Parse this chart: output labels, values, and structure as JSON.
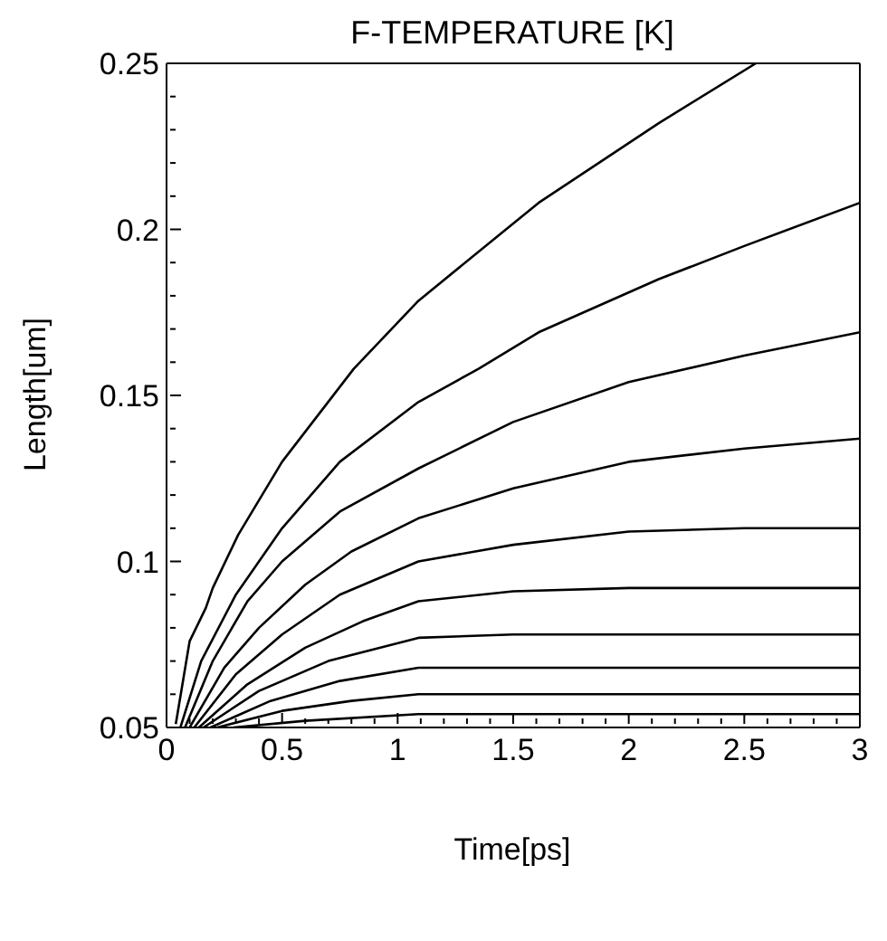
{
  "chart_data": {
    "type": "line",
    "title": "F-TEMPERATURE [K]",
    "xlabel": "Time[ps]",
    "ylabel": "Length[um]",
    "xlim": [
      0,
      3
    ],
    "ylim": [
      0.05,
      0.25
    ],
    "xticks": [
      0,
      {
        "value": 0.1,
        "label": null
      },
      {
        "value": 0.2,
        "label": null
      },
      {
        "value": 0.3,
        "label": null
      },
      {
        "value": 0.4,
        "label": null
      },
      0.5,
      {
        "value": 0.6,
        "label": null
      },
      {
        "value": 0.7,
        "label": null
      },
      {
        "value": 0.8,
        "label": null
      },
      {
        "value": 0.9,
        "label": null
      },
      1,
      {
        "value": 1.1,
        "label": null
      },
      {
        "value": 1.2,
        "label": null
      },
      {
        "value": 1.3,
        "label": null
      },
      {
        "value": 1.4,
        "label": null
      },
      1.5,
      {
        "value": 1.6,
        "label": null
      },
      {
        "value": 1.7,
        "label": null
      },
      {
        "value": 1.8,
        "label": null
      },
      {
        "value": 1.9,
        "label": null
      },
      2,
      {
        "value": 2.1,
        "label": null
      },
      {
        "value": 2.2,
        "label": null
      },
      {
        "value": 2.3,
        "label": null
      },
      {
        "value": 2.4,
        "label": null
      },
      2.5,
      {
        "value": 2.6,
        "label": null
      },
      {
        "value": 2.7,
        "label": null
      },
      {
        "value": 2.8,
        "label": null
      },
      {
        "value": 2.9,
        "label": null
      },
      3
    ],
    "yticks": [
      0.05,
      {
        "value": 0.06,
        "label": null
      },
      {
        "value": 0.07,
        "label": null
      },
      {
        "value": 0.08,
        "label": null
      },
      {
        "value": 0.09,
        "label": null
      },
      0.1,
      {
        "value": 0.11,
        "label": null
      },
      {
        "value": 0.12,
        "label": null
      },
      {
        "value": 0.13,
        "label": null
      },
      {
        "value": 0.14,
        "label": null
      },
      0.15,
      {
        "value": 0.16,
        "label": null
      },
      {
        "value": 0.17,
        "label": null
      },
      {
        "value": 0.18,
        "label": null
      },
      {
        "value": 0.19,
        "label": null
      },
      0.2,
      {
        "value": 0.21,
        "label": null
      },
      {
        "value": 0.22,
        "label": null
      },
      {
        "value": 0.23,
        "label": null
      },
      {
        "value": 0.24,
        "label": null
      },
      0.25
    ],
    "marker": "none",
    "line_style": "solid",
    "series": [
      {
        "color": "#000000",
        "x": [
          0.04,
          0.1,
          0.17,
          0.2,
          0.31,
          0.5,
          0.81,
          1.09,
          1.61,
          2.13,
          2.55
        ],
        "values": [
          0.051,
          0.076,
          0.086,
          0.092,
          0.108,
          0.13,
          0.158,
          0.1785,
          0.208,
          0.232,
          0.25
        ]
      },
      {
        "color": "#000000",
        "x": [
          0.06,
          0.15,
          0.3,
          0.5,
          0.75,
          1.09,
          1.35,
          1.61,
          2.13,
          2.5,
          3
        ],
        "values": [
          0.05,
          0.07,
          0.09,
          0.11,
          0.13,
          0.148,
          0.158,
          0.169,
          0.185,
          0.195,
          0.208
        ]
      },
      {
        "color": "#000000",
        "x": [
          0.08,
          0.2,
          0.35,
          0.5,
          0.75,
          1.09,
          1.5,
          2,
          2.5,
          3
        ],
        "values": [
          0.05,
          0.07,
          0.088,
          0.1,
          0.115,
          0.128,
          0.142,
          0.154,
          0.162,
          0.169
        ]
      },
      {
        "color": "#000000",
        "x": [
          0.1,
          0.25,
          0.4,
          0.6,
          0.8,
          1.09,
          1.5,
          2,
          2.5,
          3
        ],
        "values": [
          0.05,
          0.068,
          0.08,
          0.093,
          0.103,
          0.113,
          0.122,
          0.13,
          0.134,
          0.137
        ]
      },
      {
        "color": "#000000",
        "x": [
          0.12,
          0.3,
          0.5,
          0.75,
          1.09,
          1.5,
          2,
          2.5,
          3
        ],
        "values": [
          0.05,
          0.066,
          0.078,
          0.09,
          0.1,
          0.105,
          0.109,
          0.11,
          0.11
        ]
      },
      {
        "color": "#000000",
        "x": [
          0.14,
          0.35,
          0.6,
          0.85,
          1.09,
          1.5,
          2,
          3
        ],
        "values": [
          0.05,
          0.063,
          0.074,
          0.082,
          0.088,
          0.091,
          0.092,
          0.092
        ]
      },
      {
        "color": "#000000",
        "x": [
          0.16,
          0.4,
          0.7,
          1.09,
          1.5,
          3
        ],
        "values": [
          0.05,
          0.061,
          0.07,
          0.077,
          0.078,
          0.078
        ]
      },
      {
        "color": "#000000",
        "x": [
          0.19,
          0.45,
          0.75,
          1.09,
          1.5,
          3
        ],
        "values": [
          0.05,
          0.058,
          0.064,
          0.068,
          0.068,
          0.068
        ]
      },
      {
        "color": "#000000",
        "x": [
          0.22,
          0.5,
          0.8,
          1.09,
          3
        ],
        "values": [
          0.05,
          0.055,
          0.058,
          0.06,
          0.06
        ]
      },
      {
        "color": "#000000",
        "x": [
          0.29,
          0.6,
          1.09,
          3
        ],
        "values": [
          0.05,
          0.052,
          0.054,
          0.054
        ]
      }
    ]
  }
}
